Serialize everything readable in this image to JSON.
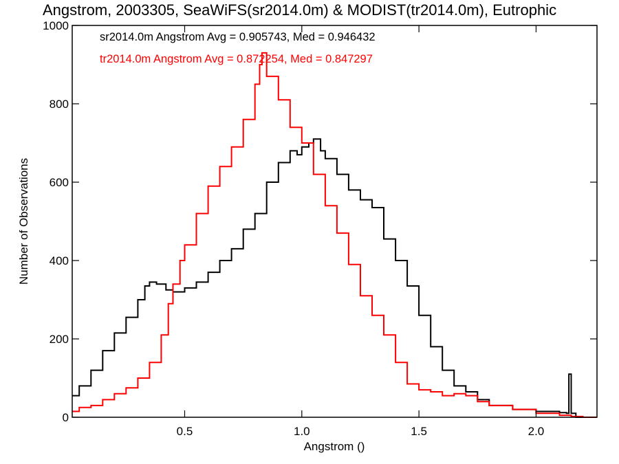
{
  "chart_data": {
    "type": "line",
    "title": "Angstrom, 2003305, SeaWiFS(sr2014.0m) & MODIST(tr2014.0m), Eutrophic",
    "xlabel": "Angstrom ()",
    "ylabel": "Number of Observations",
    "xlim": [
      0.02,
      2.26
    ],
    "ylim": [
      0,
      1000
    ],
    "xticks": [
      0.5,
      1.0,
      1.5,
      2.0
    ],
    "xtick_labels": [
      "0.5",
      "1.0",
      "1.5",
      "2.0"
    ],
    "yticks": [
      0,
      200,
      400,
      600,
      800,
      1000
    ],
    "ytick_labels": [
      "0",
      "200",
      "400",
      "600",
      "800",
      "1000"
    ],
    "step": true,
    "grid": false,
    "annotations": [
      "sr2014.0m Angstrom Avg = 0.905743, Med = 0.946432",
      "tr2014.0m Angstrom Avg = 0.872254, Med = 0.847297"
    ],
    "series": [
      {
        "color": "#000000",
        "x": [
          0.02,
          0.05,
          0.1,
          0.15,
          0.2,
          0.25,
          0.3,
          0.33,
          0.35,
          0.38,
          0.4,
          0.42,
          0.45,
          0.5,
          0.55,
          0.6,
          0.65,
          0.7,
          0.75,
          0.8,
          0.85,
          0.9,
          0.95,
          0.98,
          1.0,
          1.03,
          1.05,
          1.08,
          1.1,
          1.15,
          1.2,
          1.25,
          1.3,
          1.35,
          1.4,
          1.45,
          1.5,
          1.55,
          1.6,
          1.65,
          1.7,
          1.75,
          1.8,
          1.9,
          2.0,
          2.1,
          2.13,
          2.14,
          2.15,
          2.17,
          2.26
        ],
        "values": [
          55,
          80,
          120,
          170,
          215,
          255,
          300,
          335,
          345,
          340,
          340,
          325,
          320,
          330,
          345,
          370,
          400,
          430,
          480,
          520,
          600,
          650,
          680,
          670,
          690,
          700,
          710,
          680,
          660,
          620,
          580,
          555,
          535,
          455,
          400,
          335,
          260,
          180,
          120,
          80,
          65,
          45,
          30,
          20,
          15,
          12,
          10,
          110,
          10,
          0,
          0
        ]
      },
      {
        "color": "#ff0000",
        "x": [
          0.02,
          0.05,
          0.1,
          0.15,
          0.2,
          0.25,
          0.3,
          0.35,
          0.4,
          0.43,
          0.45,
          0.48,
          0.5,
          0.55,
          0.6,
          0.65,
          0.7,
          0.75,
          0.8,
          0.82,
          0.83,
          0.85,
          0.9,
          0.95,
          1.0,
          1.05,
          1.1,
          1.15,
          1.2,
          1.25,
          1.3,
          1.35,
          1.4,
          1.45,
          1.5,
          1.55,
          1.6,
          1.65,
          1.7,
          1.75,
          1.8,
          1.9,
          2.0,
          2.1,
          2.15,
          2.2,
          2.26
        ],
        "values": [
          15,
          25,
          30,
          45,
          60,
          75,
          100,
          140,
          210,
          290,
          340,
          400,
          440,
          520,
          590,
          640,
          690,
          760,
          850,
          900,
          930,
          870,
          810,
          740,
          700,
          620,
          540,
          470,
          390,
          310,
          260,
          210,
          140,
          85,
          70,
          65,
          55,
          60,
          55,
          40,
          30,
          20,
          10,
          5,
          2,
          0,
          0
        ]
      }
    ]
  }
}
